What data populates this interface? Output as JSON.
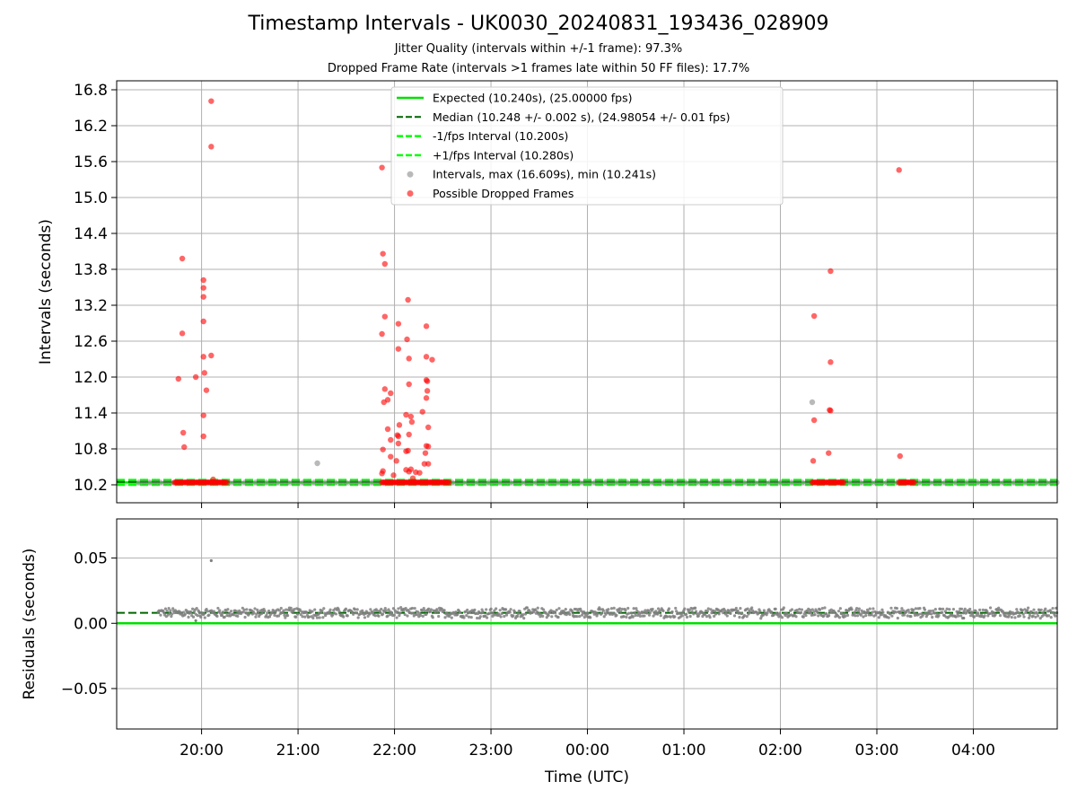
{
  "title": "Timestamp Intervals - UK0030_20240831_193436_028909",
  "subtitle_jitter": "Jitter Quality (intervals within +/-1 frame): 97.3%",
  "subtitle_dropped": "Dropped Frame Rate (intervals >1 frames late within 50 FF files): 17.7%",
  "colors": {
    "expected": "#00e000",
    "median": "#006400",
    "interval": "#00ff00",
    "points": "#808080",
    "dropped": "#ff0000",
    "grid": "#b0b0b0"
  },
  "chart_data": [
    {
      "type": "scatter",
      "panel": "intervals",
      "ylabel": "Intervals (seconds)",
      "xlabel": "",
      "ylim": [
        9.9,
        16.95
      ],
      "xlim": [
        -0.88,
        8.87
      ],
      "x_unit": "hours after 20:00 UTC",
      "yticks": [
        "10.2",
        "10.8",
        "11.4",
        "12.0",
        "12.6",
        "13.2",
        "13.8",
        "14.4",
        "15.0",
        "15.6",
        "16.2",
        "16.8"
      ],
      "grid": true,
      "legend_position": "top-center",
      "legend": [
        {
          "label": "Expected (10.240s), (25.00000 fps)",
          "style": "solid"
        },
        {
          "label": "Median (10.248 +/- 0.002 s), (24.98054 +/- 0.01 fps)",
          "style": "dashed-dark"
        },
        {
          "label": "-1/fps Interval (10.200s)",
          "style": "dashed"
        },
        {
          "label": "+1/fps Interval (10.280s)",
          "style": "dashed"
        },
        {
          "label": "Intervals, max (16.609s), min (10.241s)",
          "style": "gray-dot"
        },
        {
          "label": "Possible Dropped Frames",
          "style": "red-dot"
        }
      ],
      "reference_lines": {
        "expected": 10.24,
        "median": 10.248,
        "minus_one_fps": 10.2,
        "plus_one_fps": 10.28
      },
      "baseline_band": {
        "x_start": -0.65,
        "x_end": 8.87,
        "y": 10.24
      },
      "dropped_baseline_runs": [
        {
          "x_start": -0.28,
          "x_end": 0.27,
          "y": 10.24
        },
        {
          "x_start": 1.87,
          "x_end": 2.57,
          "y": 10.24
        },
        {
          "x_start": 6.33,
          "x_end": 6.66,
          "y": 10.24
        },
        {
          "x_start": 7.23,
          "x_end": 7.39,
          "y": 10.24
        }
      ],
      "gray_points": [
        {
          "x": 1.2,
          "y": 10.56
        },
        {
          "x": 6.33,
          "y": 11.58
        }
      ],
      "dropped_points": [
        {
          "x": 0.1,
          "y": 16.61
        },
        {
          "x": 0.1,
          "y": 15.85
        },
        {
          "x": -0.2,
          "y": 13.98
        },
        {
          "x": 0.02,
          "y": 13.62
        },
        {
          "x": 0.02,
          "y": 13.49
        },
        {
          "x": 0.02,
          "y": 13.34
        },
        {
          "x": 0.02,
          "y": 12.93
        },
        {
          "x": -0.2,
          "y": 12.73
        },
        {
          "x": 0.1,
          "y": 12.36
        },
        {
          "x": 0.02,
          "y": 12.34
        },
        {
          "x": 0.03,
          "y": 12.07
        },
        {
          "x": -0.06,
          "y": 12.0
        },
        {
          "x": -0.24,
          "y": 11.97
        },
        {
          "x": 0.05,
          "y": 11.78
        },
        {
          "x": 0.02,
          "y": 11.36
        },
        {
          "x": -0.19,
          "y": 11.07
        },
        {
          "x": 0.02,
          "y": 11.01
        },
        {
          "x": -0.18,
          "y": 10.83
        },
        {
          "x": 0.12,
          "y": 10.29
        },
        {
          "x": 1.87,
          "y": 15.5
        },
        {
          "x": 1.88,
          "y": 14.06
        },
        {
          "x": 1.9,
          "y": 13.89
        },
        {
          "x": 2.14,
          "y": 13.29
        },
        {
          "x": 1.9,
          "y": 13.01
        },
        {
          "x": 2.04,
          "y": 12.89
        },
        {
          "x": 2.33,
          "y": 12.85
        },
        {
          "x": 1.87,
          "y": 12.72
        },
        {
          "x": 2.13,
          "y": 12.63
        },
        {
          "x": 2.04,
          "y": 12.47
        },
        {
          "x": 2.33,
          "y": 12.34
        },
        {
          "x": 2.15,
          "y": 12.31
        },
        {
          "x": 2.39,
          "y": 12.29
        },
        {
          "x": 2.33,
          "y": 11.95
        },
        {
          "x": 2.34,
          "y": 11.93
        },
        {
          "x": 2.15,
          "y": 11.88
        },
        {
          "x": 1.9,
          "y": 11.8
        },
        {
          "x": 2.34,
          "y": 11.77
        },
        {
          "x": 1.96,
          "y": 11.73
        },
        {
          "x": 2.33,
          "y": 11.65
        },
        {
          "x": 1.93,
          "y": 11.62
        },
        {
          "x": 1.89,
          "y": 11.58
        },
        {
          "x": 2.29,
          "y": 11.42
        },
        {
          "x": 2.12,
          "y": 11.37
        },
        {
          "x": 2.17,
          "y": 11.34
        },
        {
          "x": 2.18,
          "y": 11.25
        },
        {
          "x": 2.05,
          "y": 11.2
        },
        {
          "x": 2.35,
          "y": 11.16
        },
        {
          "x": 1.93,
          "y": 11.13
        },
        {
          "x": 2.15,
          "y": 11.04
        },
        {
          "x": 2.03,
          "y": 11.03
        },
        {
          "x": 2.04,
          "y": 11.01
        },
        {
          "x": 1.96,
          "y": 10.95
        },
        {
          "x": 2.04,
          "y": 10.89
        },
        {
          "x": 2.33,
          "y": 10.85
        },
        {
          "x": 2.35,
          "y": 10.84
        },
        {
          "x": 1.88,
          "y": 10.79
        },
        {
          "x": 2.14,
          "y": 10.77
        },
        {
          "x": 2.12,
          "y": 10.76
        },
        {
          "x": 2.32,
          "y": 10.73
        },
        {
          "x": 1.96,
          "y": 10.67
        },
        {
          "x": 2.02,
          "y": 10.6
        },
        {
          "x": 2.35,
          "y": 10.55
        },
        {
          "x": 2.31,
          "y": 10.55
        },
        {
          "x": 2.17,
          "y": 10.46
        },
        {
          "x": 2.12,
          "y": 10.45
        },
        {
          "x": 1.88,
          "y": 10.43
        },
        {
          "x": 2.15,
          "y": 10.42
        },
        {
          "x": 2.22,
          "y": 10.41
        },
        {
          "x": 2.26,
          "y": 10.4
        },
        {
          "x": 1.87,
          "y": 10.39
        },
        {
          "x": 1.99,
          "y": 10.36
        },
        {
          "x": 2.19,
          "y": 10.31
        },
        {
          "x": 6.52,
          "y": 13.77
        },
        {
          "x": 6.35,
          "y": 13.02
        },
        {
          "x": 6.52,
          "y": 12.25
        },
        {
          "x": 6.51,
          "y": 11.45
        },
        {
          "x": 6.52,
          "y": 11.44
        },
        {
          "x": 6.35,
          "y": 11.28
        },
        {
          "x": 6.5,
          "y": 10.73
        },
        {
          "x": 6.34,
          "y": 10.6
        },
        {
          "x": 7.23,
          "y": 15.46
        },
        {
          "x": 7.24,
          "y": 10.68
        }
      ]
    },
    {
      "type": "scatter",
      "panel": "residuals",
      "ylabel": "Residuals (seconds)",
      "xlabel": "Time (UTC)",
      "ylim": [
        -0.081,
        0.08
      ],
      "xlim": [
        -0.88,
        8.87
      ],
      "yticks": [
        {
          "value": 0.05,
          "label": "0.05"
        },
        {
          "value": 0.0,
          "label": "0.00"
        },
        {
          "value": -0.05,
          "label": "−0.05"
        }
      ],
      "xticks": [
        {
          "value": 0,
          "label": "20:00"
        },
        {
          "value": 1,
          "label": "21:00"
        },
        {
          "value": 2,
          "label": "22:00"
        },
        {
          "value": 3,
          "label": "23:00"
        },
        {
          "value": 4,
          "label": "00:00"
        },
        {
          "value": 5,
          "label": "01:00"
        },
        {
          "value": 6,
          "label": "02:00"
        },
        {
          "value": 7,
          "label": "03:00"
        },
        {
          "value": 8,
          "label": "04:00"
        }
      ],
      "grid": true,
      "zero_line": 0.0,
      "median_line": 0.008,
      "residual_band": {
        "x_start": -0.45,
        "x_end": 8.87,
        "center": 0.008,
        "spread": 0.0035
      },
      "outlier_points": [
        {
          "x": 0.1,
          "y": 0.048
        },
        {
          "x": -0.06,
          "y": 0.002
        },
        {
          "x": 7.9,
          "y": 0.004
        }
      ]
    }
  ]
}
